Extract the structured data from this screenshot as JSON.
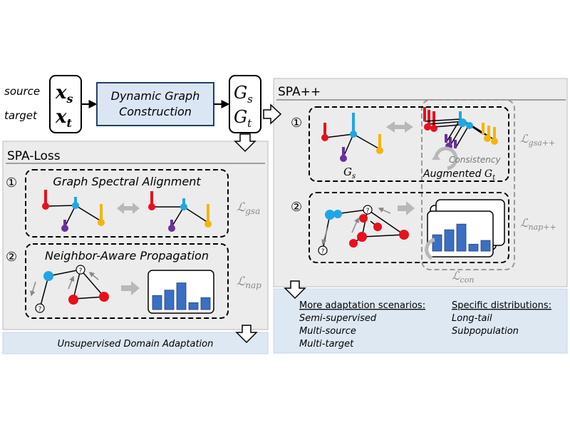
{
  "top": {
    "source_label": "source",
    "target_label": "target",
    "xs_main": "x",
    "xs_sub": "s",
    "xt_main": "x",
    "xt_sub": "t",
    "construction_line1": "Dynamic Graph",
    "construction_line2": "Construction",
    "gs_main": "G",
    "gs_sub": "s",
    "gt_main": "G",
    "gt_sub": "t"
  },
  "spa_loss": {
    "title": "SPA-Loss",
    "step1_num": "①",
    "step1_title": "Graph Spectral Alignment",
    "loss1_main": "ℒ",
    "loss1_sub": "gsa",
    "step2_num": "②",
    "step2_title": "Neighbor-Aware Propagation",
    "loss2_main": "ℒ",
    "loss2_sub": "nap",
    "footer": "Unsupervised Domain Adaptation"
  },
  "spa_pp": {
    "title": "SPA++",
    "step1_num": "①",
    "gs_main": "G",
    "gs_sub": "s",
    "consistency": "Consistency",
    "augmented_prefix": "Augmented ",
    "augmented_main": "G",
    "augmented_sub": "t",
    "loss1_main": "ℒ",
    "loss1_sub": "gsa++",
    "step2_num": "②",
    "loss2_main": "ℒ",
    "loss2_sub": "nap++",
    "loss_con_main": "ℒ",
    "loss_con_sub": "con",
    "scenarios_header": "More adaptation scenarios:",
    "scenarios": [
      "Semi-supervised",
      "Multi-source",
      "Multi-target"
    ],
    "distributions_header": "Specific distributions:",
    "distributions": [
      "Long-tail",
      "Subpopulation"
    ]
  },
  "node_labels": {
    "unknown": "?"
  },
  "histogram_values": [
    0.45,
    0.62,
    0.85,
    0.22,
    0.38
  ],
  "histogram_values_pp": [
    0.52,
    0.68,
    0.86,
    0.22,
    0.34
  ],
  "colors": {
    "red": "#e8101c",
    "blue": "#1ea7e4",
    "purple": "#6a2fa0",
    "yellow": "#f5b40a",
    "bar": "#3b6fc4",
    "panel": "#ececec",
    "box_fill": "#dbe6f5",
    "footer": "#dde8f3",
    "arrow_gray": "#b8b8b8"
  }
}
